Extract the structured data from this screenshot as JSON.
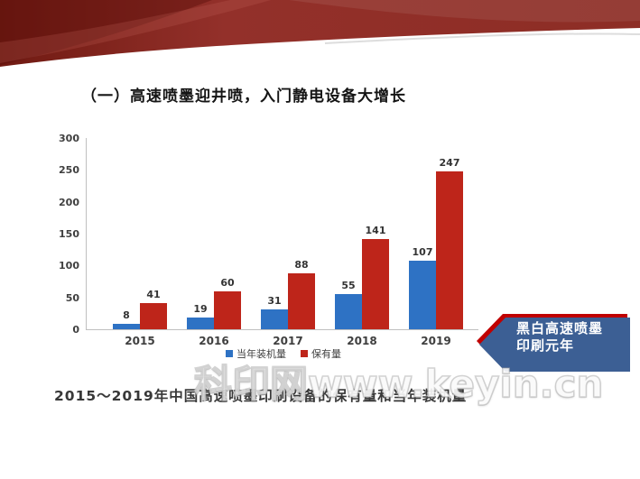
{
  "slide": {
    "title": "（一）高速喷墨迎井喷，入门静电设备大增长",
    "caption": "2015～2019年中国高速喷墨印刷设备的保有量和当年装机量",
    "watermark": "科印网www.keyin.cn"
  },
  "banner": {
    "line1": "黑白高速喷墨",
    "line2": "印刷元年",
    "bg_color": "#3c5f94",
    "accent_color": "#c00000"
  },
  "chart_data": {
    "type": "bar",
    "categories": [
      "2015",
      "2016",
      "2017",
      "2018",
      "2019"
    ],
    "series": [
      {
        "name": "当年装机量",
        "color": "#2e72c4",
        "values": [
          8,
          19,
          31,
          55,
          107
        ]
      },
      {
        "name": "保有量",
        "color": "#be251a",
        "values": [
          41,
          60,
          88,
          141,
          247
        ]
      }
    ],
    "title": "",
    "xlabel": "",
    "ylabel": "",
    "ylim": [
      0,
      300
    ],
    "yticks": [
      0,
      50,
      100,
      150,
      200,
      250,
      300
    ],
    "grid": false,
    "legend_position": "bottom"
  },
  "theme": {
    "header_red_dark": "#6f1a12",
    "header_red": "#93302a",
    "header_red_light": "#9d3b32",
    "axis_color": "#bfbfbf",
    "label_color": "#3f3f3f"
  }
}
